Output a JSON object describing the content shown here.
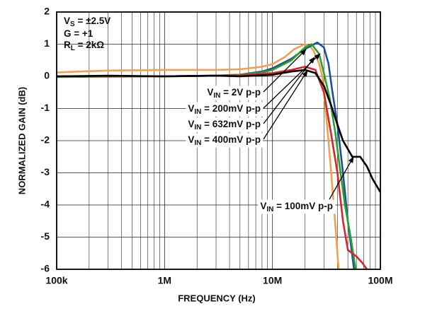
{
  "chart_data": {
    "type": "line",
    "x_label": "FREQUENCY (Hz)",
    "y_label": "NORMALIZED GAIN (dB)",
    "log_x": true,
    "grid": true,
    "x_minor_grid": true,
    "xlim": [
      100000,
      100000000
    ],
    "ylim": [
      -6,
      2
    ],
    "xticks": [
      {
        "value": 100000,
        "label": "100k"
      },
      {
        "value": 1000000,
        "label": "1M"
      },
      {
        "value": 10000000,
        "label": "10M"
      },
      {
        "value": 100000000,
        "label": "100M"
      }
    ],
    "yticks": [
      2,
      1,
      0,
      -1,
      -2,
      -3,
      -4,
      -5,
      -6
    ],
    "annotations": [
      {
        "text": "V",
        "sub": "S",
        "rest": " = ±2.5V"
      },
      {
        "text": "G = +1"
      },
      {
        "text": "R",
        "sub": "L",
        "rest": " = 2kΩ"
      }
    ],
    "series": [
      {
        "label": {
          "text": "V",
          "sub": "IN",
          "rest": " = 2V p-p"
        },
        "color": "#f0a050",
        "x": [
          100000,
          300000,
          1000000,
          3000000,
          5000000,
          8000000,
          10000000,
          13000000,
          16000000,
          20000000,
          22000000,
          24000000,
          27000000,
          29000000,
          31000000,
          33000000,
          35000000,
          37000000,
          39000000,
          41000000
        ],
        "values": [
          0.12,
          0.18,
          0.2,
          0.2,
          0.22,
          0.3,
          0.38,
          0.6,
          0.85,
          1.0,
          0.95,
          0.8,
          0.4,
          0.0,
          -1.0,
          -2.0,
          -3.0,
          -4.0,
          -5.0,
          -6.0
        ]
      },
      {
        "label": {
          "text": "V",
          "sub": "IN",
          "rest": " = 200mV p-p"
        },
        "color": "#1f4e99",
        "x": [
          100000,
          1000000,
          3000000,
          5000000,
          8000000,
          10000000,
          15000000,
          20000000,
          26000000,
          30000000,
          33000000,
          36000000,
          40000000,
          45000000,
          50000000,
          57000000
        ],
        "values": [
          0.0,
          0.0,
          0.02,
          0.05,
          0.15,
          0.25,
          0.55,
          0.85,
          1.05,
          0.9,
          0.4,
          -0.5,
          -1.5,
          -3.0,
          -4.5,
          -6.0
        ]
      },
      {
        "label": {
          "text": "V",
          "sub": "IN",
          "rest": " = 632mV p-p"
        },
        "color": "#2ca02c",
        "x": [
          100000,
          1000000,
          3000000,
          5000000,
          8000000,
          10000000,
          15000000,
          20000000,
          23000000,
          27000000,
          30000000,
          34000000,
          38000000,
          42000000,
          47000000,
          53000000,
          59000000
        ],
        "values": [
          -0.02,
          0.0,
          0.02,
          0.05,
          0.12,
          0.2,
          0.5,
          0.9,
          1.0,
          0.7,
          0.1,
          -0.7,
          -1.7,
          -2.8,
          -4.0,
          -5.0,
          -6.0
        ]
      },
      {
        "label": {
          "text": "V",
          "sub": "IN",
          "rest": " = 400mV p-p"
        },
        "color": "#d62728",
        "x": [
          100000,
          1000000,
          5000000,
          10000000,
          15000000,
          20000000,
          25000000,
          30000000,
          35000000,
          40000000,
          45000000,
          50000000,
          60000000,
          68000000,
          75000000
        ],
        "values": [
          0.0,
          0.0,
          0.03,
          0.1,
          0.2,
          0.3,
          0.2,
          -0.5,
          -1.8,
          -3.0,
          -4.5,
          -5.4,
          -5.6,
          -5.8,
          -6.0
        ]
      },
      {
        "label": {
          "text": "V",
          "sub": "IN",
          "rest": " = 100mV p-p"
        },
        "color": "#000000",
        "x": [
          100000,
          300000,
          1000000,
          3000000,
          5000000,
          8000000,
          10000000,
          15000000,
          20000000,
          25000000,
          30000000,
          35000000,
          40000000,
          45000000,
          55000000,
          65000000,
          75000000,
          85000000,
          100000000
        ],
        "values": [
          0.0,
          0.02,
          0.0,
          0.02,
          0.0,
          0.03,
          0.05,
          0.15,
          0.2,
          0.1,
          -0.3,
          -0.9,
          -1.5,
          -2.0,
          -2.5,
          -2.5,
          -2.8,
          -3.2,
          -3.6
        ]
      }
    ]
  }
}
